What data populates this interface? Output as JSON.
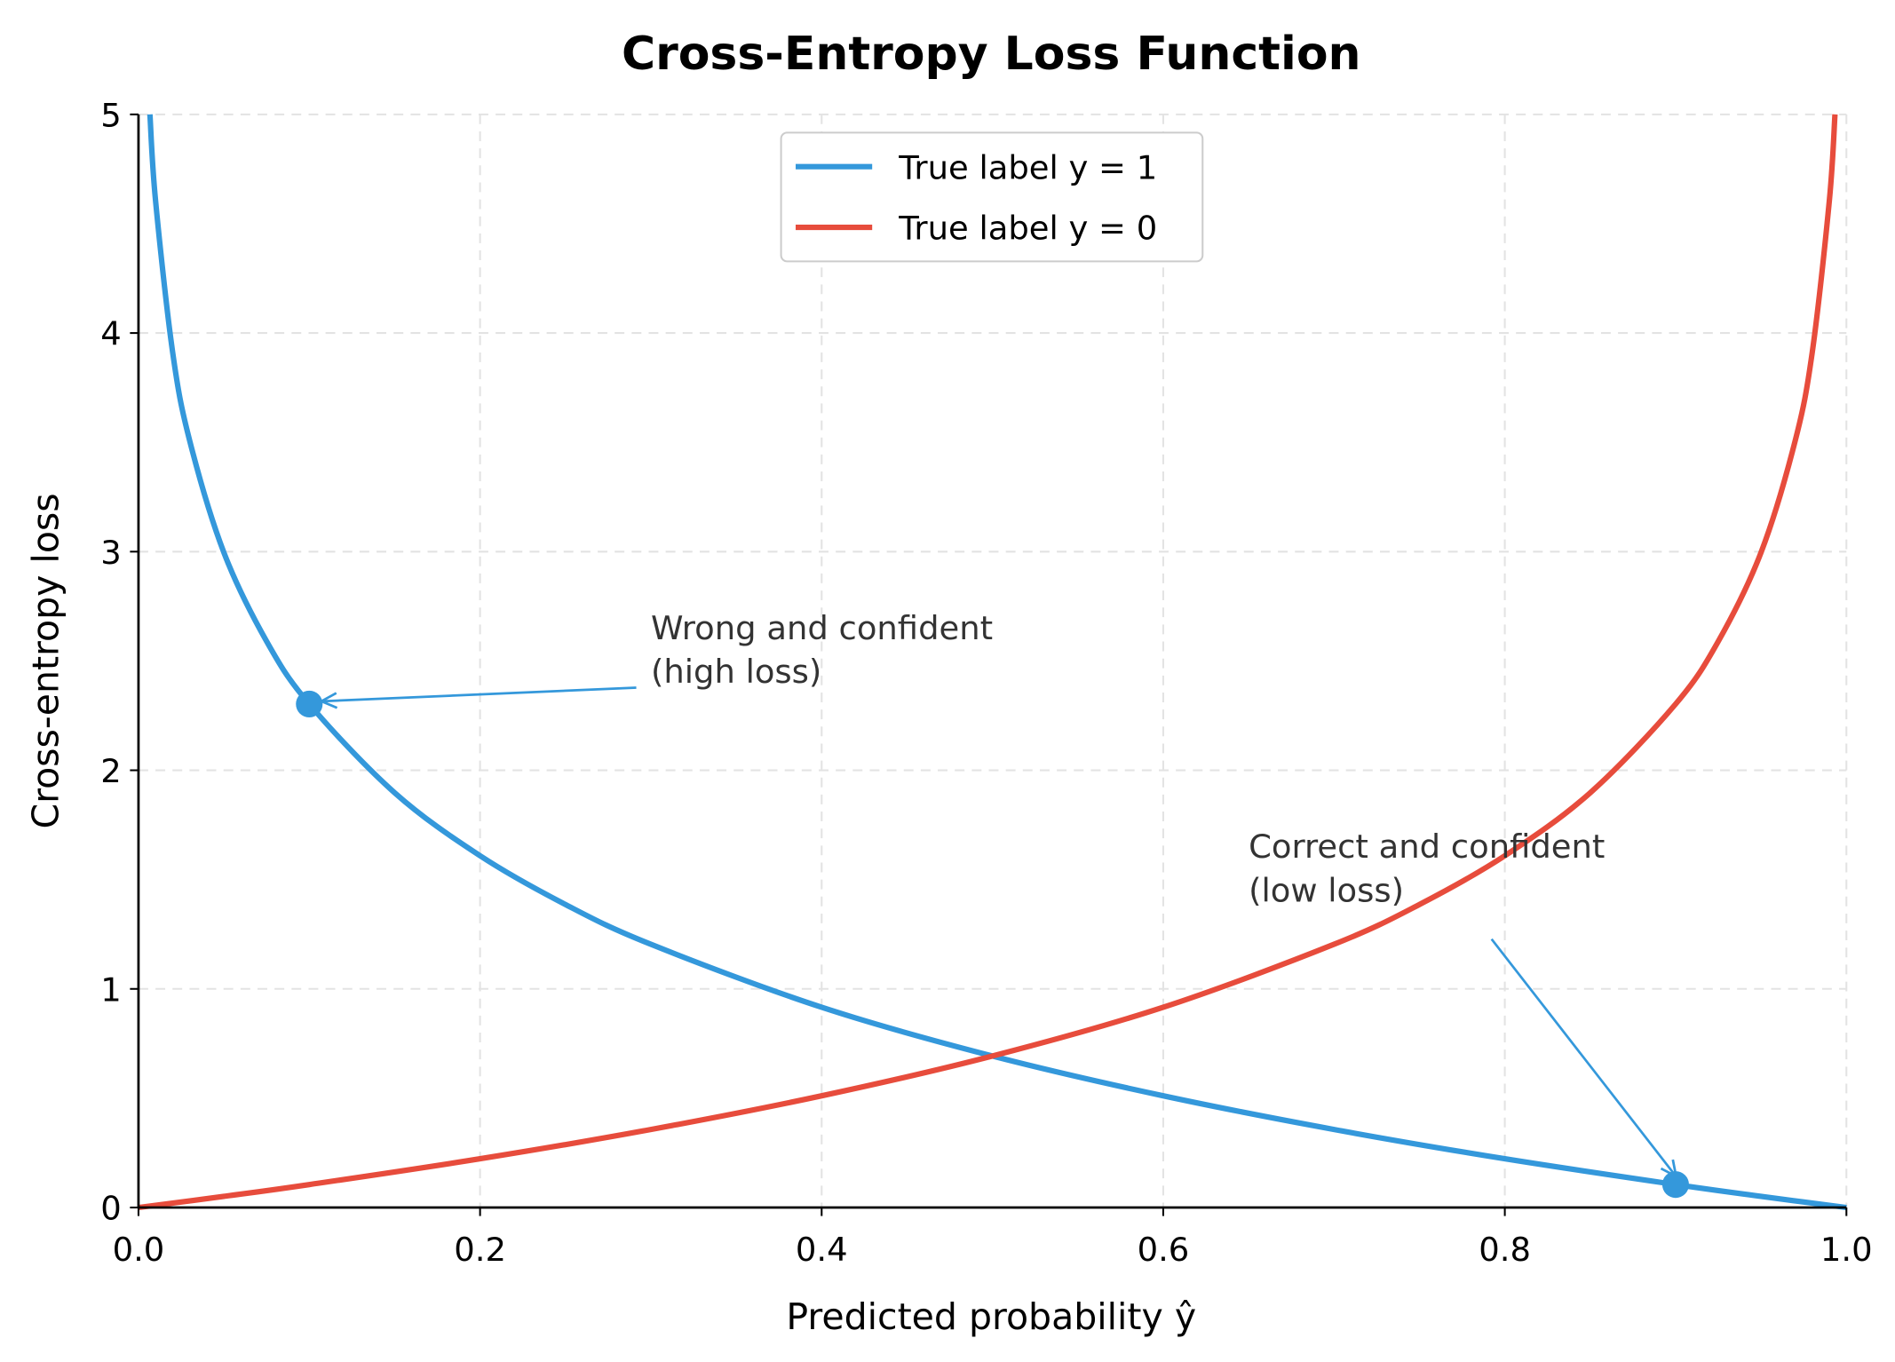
{
  "chart_data": {
    "type": "line",
    "title": "Cross-Entropy Loss Function",
    "xlabel": "Predicted probability ŷ",
    "ylabel": "Cross-entropy loss",
    "xlim": [
      0,
      1
    ],
    "ylim": [
      0,
      5
    ],
    "x_ticks": [
      "0.0",
      "0.2",
      "0.4",
      "0.6",
      "0.8",
      "1.0"
    ],
    "y_ticks": [
      "0",
      "1",
      "2",
      "3",
      "4",
      "5"
    ],
    "grid": true,
    "grid_style": "dashed",
    "legend_position": "top-center",
    "series": [
      {
        "name": "True label y = 1",
        "color": "#3498db",
        "x": [
          0.0067,
          0.01,
          0.02,
          0.03,
          0.05,
          0.075,
          0.1,
          0.15,
          0.2,
          0.25,
          0.3,
          0.4,
          0.5,
          0.6,
          0.7,
          0.8,
          0.9,
          0.95,
          1.0
        ],
        "y": [
          5.0,
          4.605,
          3.912,
          3.507,
          2.996,
          2.59,
          2.303,
          1.897,
          1.609,
          1.386,
          1.204,
          0.916,
          0.693,
          0.511,
          0.357,
          0.223,
          0.105,
          0.051,
          0.0
        ]
      },
      {
        "name": "True label y = 0",
        "color": "#e74c3c",
        "x": [
          0.0,
          0.05,
          0.1,
          0.2,
          0.3,
          0.4,
          0.5,
          0.6,
          0.7,
          0.75,
          0.8,
          0.85,
          0.9,
          0.925,
          0.95,
          0.97,
          0.98,
          0.99,
          0.9933
        ],
        "y": [
          0.0,
          0.051,
          0.105,
          0.223,
          0.357,
          0.511,
          0.693,
          0.916,
          1.204,
          1.386,
          1.609,
          1.897,
          2.303,
          2.59,
          2.996,
          3.507,
          3.912,
          4.605,
          5.0
        ]
      }
    ],
    "annotations": [
      {
        "lines": [
          "Wrong and confident",
          "(high loss)"
        ],
        "point": [
          0.1,
          2.303
        ],
        "text_at": [
          0.3,
          2.6
        ],
        "color": "#3498db"
      },
      {
        "lines": [
          "Correct and confident",
          "(low loss)"
        ],
        "point": [
          0.9,
          0.105
        ],
        "text_at": [
          0.65,
          1.6
        ],
        "color": "#3498db"
      }
    ]
  }
}
